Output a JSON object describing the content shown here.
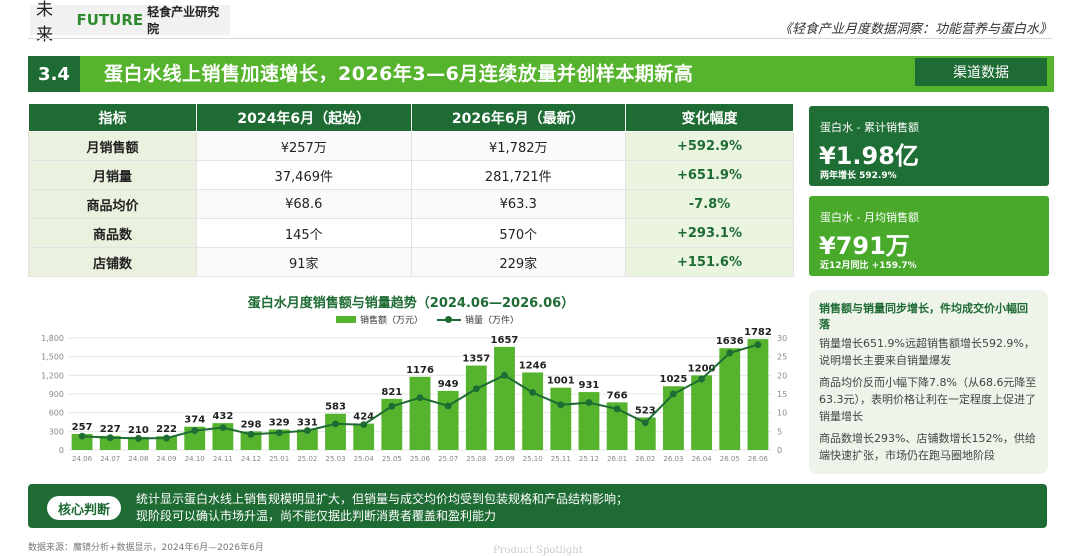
{
  "header": {
    "logo_cn": "未来",
    "logo_en": "FUTURE",
    "logo_sub": "轻食产业研究院",
    "report_title": "《轻食产业月度数据洞察：功能营养与蛋白水》"
  },
  "banner": {
    "number": "3.4",
    "title": "蛋白水线上销售加速增长，2026年3—6月连续放量并创样本期新高",
    "tag": "渠道数据"
  },
  "table": {
    "headers": [
      "指标",
      "2024年6月（起始）",
      "2026年6月（最新）",
      "变化幅度"
    ],
    "rows": [
      {
        "metric": "月销售额",
        "start": "¥257万",
        "latest": "¥1,782万",
        "change": "+592.9%"
      },
      {
        "metric": "月销量",
        "start": "37,469件",
        "latest": "281,721件",
        "change": "+651.9%"
      },
      {
        "metric": "商品均价",
        "start": "¥68.6",
        "latest": "¥63.3",
        "change": "-7.8%"
      },
      {
        "metric": "商品数",
        "start": "145个",
        "latest": "570个",
        "change": "+293.1%"
      },
      {
        "metric": "店铺数",
        "start": "91家",
        "latest": "229家",
        "change": "+151.6%"
      }
    ]
  },
  "cards": [
    {
      "label": "蛋白水 - 累计销售额",
      "value": "¥1.98亿",
      "sub": "两年增长 592.9%"
    },
    {
      "label": "蛋白水 - 月均销售额",
      "value": "¥791万",
      "sub": "近12月同比 +159.7%"
    }
  ],
  "insight": {
    "heading": "销售额与销量同步增长，件均成交价小幅回落",
    "paragraphs": [
      "销量增长651.9%远超销售额增长592.9%，说明增长主要来自销量爆发",
      "商品均价反而小幅下降7.8%（从68.6元降至63.3元），表明价格让利在一定程度上促进了销量增长",
      "商品数增长293%、店铺数增长152%，供给端快速扩张，市场仍在跑马圈地阶段"
    ]
  },
  "chart_data": {
    "type": "bar",
    "title": "蛋白水月度销售额与销量趋势（2024.06—2026.06）",
    "categories": [
      "24.06",
      "24.07",
      "24.08",
      "24.09",
      "24.10",
      "24.11",
      "24.12",
      "25.01",
      "25.02",
      "25.03",
      "25.04",
      "25.05",
      "25.06",
      "25.07",
      "25.08",
      "25.09",
      "25.10",
      "25.11",
      "25.12",
      "26.01",
      "26.02",
      "26.03",
      "26.04",
      "26.05",
      "26.06"
    ],
    "series": [
      {
        "name": "销售额（万元）",
        "type": "bar",
        "axis": "left",
        "color": "#56b32d",
        "values": [
          257,
          227,
          210,
          222,
          374,
          432,
          298,
          329,
          331,
          583,
          424,
          821,
          1176,
          949,
          1357,
          1657,
          1246,
          1001,
          931,
          766,
          523,
          1025,
          1200,
          1636,
          1782
        ]
      },
      {
        "name": "销量（万件）",
        "type": "line",
        "axis": "right",
        "color": "#1e6b34",
        "values": [
          3.7,
          3.3,
          3.1,
          3.2,
          5.2,
          6.0,
          4.2,
          4.6,
          5.2,
          7.0,
          6.8,
          11.7,
          14.0,
          11.8,
          16.4,
          20.0,
          15.4,
          12.1,
          12.7,
          11.0,
          7.3,
          15.0,
          19.0,
          26.0,
          28.2
        ]
      }
    ],
    "ylim_left": [
      0,
      1800
    ],
    "yticks_left": [
      0,
      300,
      600,
      900,
      1200,
      1500,
      1800
    ],
    "ytick_labels_left": [
      "0",
      "300",
      "600",
      "900",
      "1,200",
      "1,500",
      "1,800"
    ],
    "ylim_right": [
      0,
      30
    ],
    "yticks_right": [
      0,
      5,
      10,
      15,
      20,
      25,
      30
    ],
    "legend": "top-center",
    "grid": true
  },
  "bottom": {
    "label": "核心判断",
    "lines": [
      "统计显示蛋白水线上销售规模明显扩大，但销量与成交均价均受到包装规格和产品结构影响；",
      "现阶段可以确认市场升温，尚不能仅据此判断消费者覆盖和盈利能力"
    ]
  },
  "source": "数据来源：魔镜分析+数据显示，2024年6月—2026年6月",
  "watermark": "Product Spotlight",
  "colors": {
    "dark_green": "#1e6b34",
    "green": "#56b32d",
    "pale_green": "#eef4ea"
  }
}
